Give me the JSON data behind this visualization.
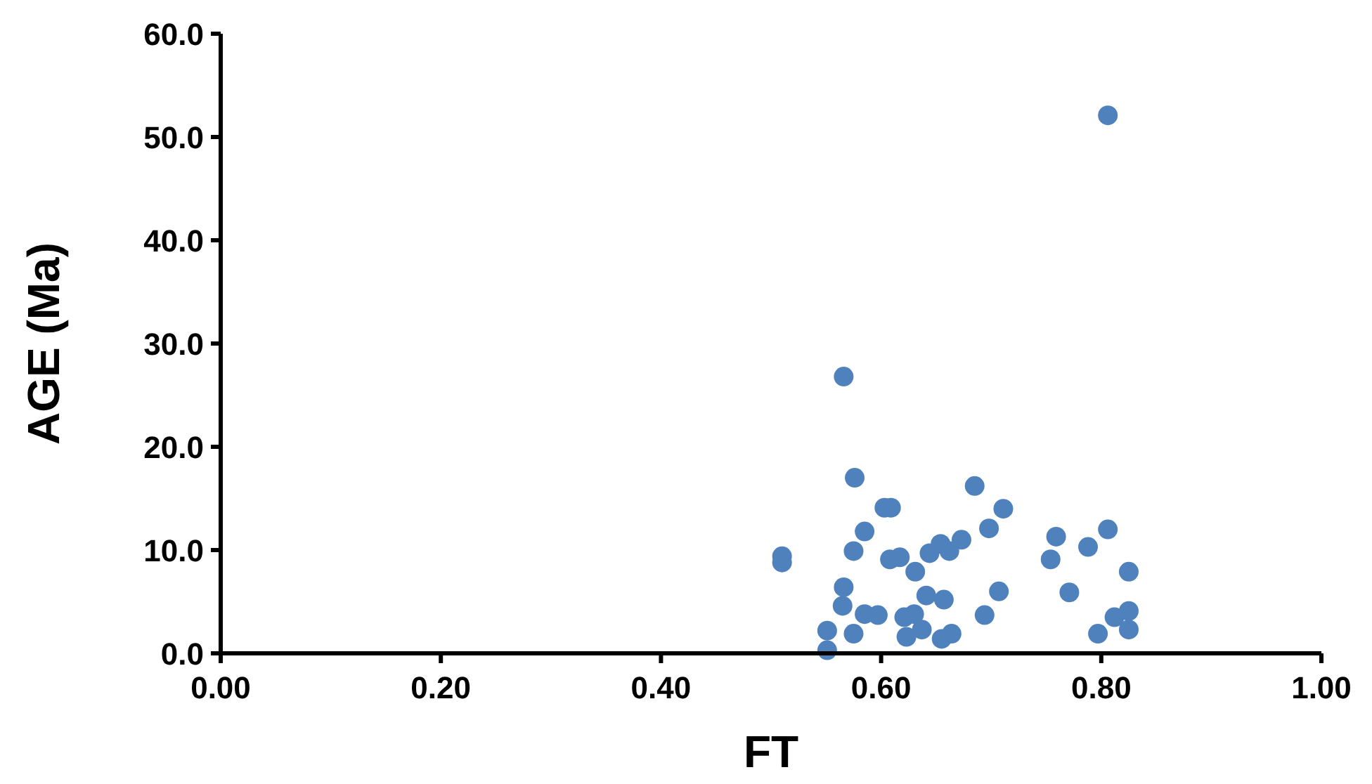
{
  "chart_data": {
    "type": "scatter",
    "xlabel": "FT",
    "ylabel": "AGE (Ma)",
    "xlim": [
      0,
      1
    ],
    "ylim": [
      0,
      60
    ],
    "xticks": [
      {
        "value": 0,
        "label": "0.00"
      },
      {
        "value": 0.2,
        "label": "0.20"
      },
      {
        "value": 0.4,
        "label": "0.40"
      },
      {
        "value": 0.6,
        "label": "0.60"
      },
      {
        "value": 0.8,
        "label": "0.80"
      },
      {
        "value": 1,
        "label": "1.00"
      }
    ],
    "yticks": [
      {
        "value": 0,
        "label": "0.0"
      },
      {
        "value": 10,
        "label": "10.0"
      },
      {
        "value": 20,
        "label": "20.0"
      },
      {
        "value": 30,
        "label": "30.0"
      },
      {
        "value": 40,
        "label": "40.0"
      },
      {
        "value": 50,
        "label": "50.0"
      },
      {
        "value": 60,
        "label": "60.0"
      }
    ],
    "grid": false,
    "marker": "circle",
    "series": [
      {
        "color": "#4f81bd",
        "x": [
          0.576,
          0.603,
          0.609,
          0.585,
          0.51,
          0.51,
          0.575,
          0.608,
          0.617,
          0.631,
          0.644,
          0.654,
          0.662,
          0.673,
          0.685,
          0.566,
          0.565,
          0.585,
          0.597,
          0.551,
          0.551,
          0.575,
          0.621,
          0.63,
          0.637,
          0.623,
          0.641,
          0.657,
          0.655,
          0.664,
          0.694,
          0.711,
          0.698,
          0.707,
          0.759,
          0.754,
          0.788,
          0.806,
          0.825,
          0.771,
          0.812,
          0.825,
          0.825,
          0.797,
          0.806,
          0.566
        ],
        "values": [
          17.0,
          14.1,
          14.1,
          11.8,
          9.4,
          8.8,
          9.9,
          9.1,
          9.3,
          7.9,
          9.7,
          10.6,
          9.9,
          11.0,
          16.2,
          6.4,
          4.6,
          3.8,
          3.7,
          2.2,
          0.3,
          1.9,
          3.5,
          3.8,
          2.3,
          1.6,
          5.6,
          5.2,
          1.4,
          1.9,
          3.7,
          14.0,
          12.1,
          6.0,
          11.3,
          9.1,
          10.3,
          12.0,
          7.9,
          5.9,
          3.5,
          4.1,
          2.3,
          1.9,
          52.1,
          26.8
        ]
      }
    ]
  }
}
